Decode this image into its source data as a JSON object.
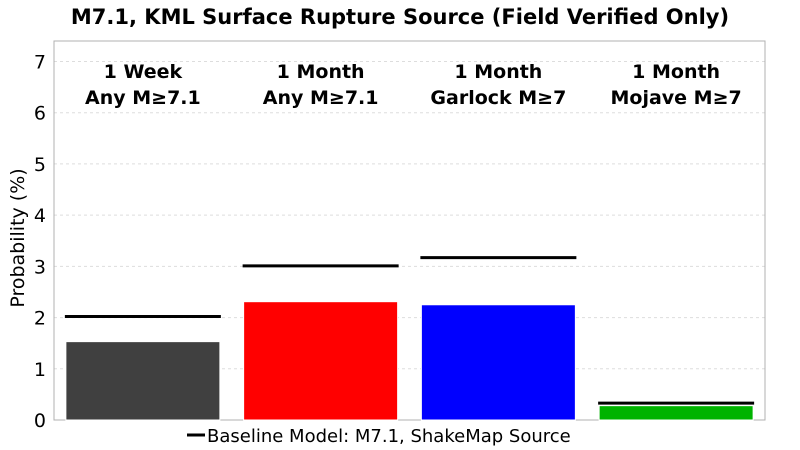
{
  "chart_data": {
    "type": "bar",
    "title": "M7.1, KML Surface Rupture Source (Field Verified Only)",
    "xlabel": "",
    "ylabel": "Probability (%)",
    "ylim": [
      0,
      7.4
    ],
    "yticks": [
      "0",
      "1",
      "2",
      "3",
      "4",
      "5",
      "6",
      "7"
    ],
    "grid": true,
    "legend_position": "bottom-center",
    "categories": [
      {
        "line1": "1 Week",
        "line2": "Any M≥7.1"
      },
      {
        "line1": "1 Month",
        "line2": "Any M≥7.1"
      },
      {
        "line1": "1 Month",
        "line2": "Garlock M≥7"
      },
      {
        "line1": "1 Month",
        "line2": "Mojave M≥7"
      }
    ],
    "series": [
      {
        "values": [
          1.53,
          2.31,
          2.25,
          0.28
        ],
        "colors": [
          "#404040",
          "#ff0000",
          "#0000ff",
          "#00b300"
        ]
      },
      {
        "name": "Baseline Model: M7.1, ShakeMap Source",
        "style": "line",
        "color": "#000000",
        "values": [
          2.02,
          3.01,
          3.17,
          0.33
        ]
      }
    ]
  }
}
